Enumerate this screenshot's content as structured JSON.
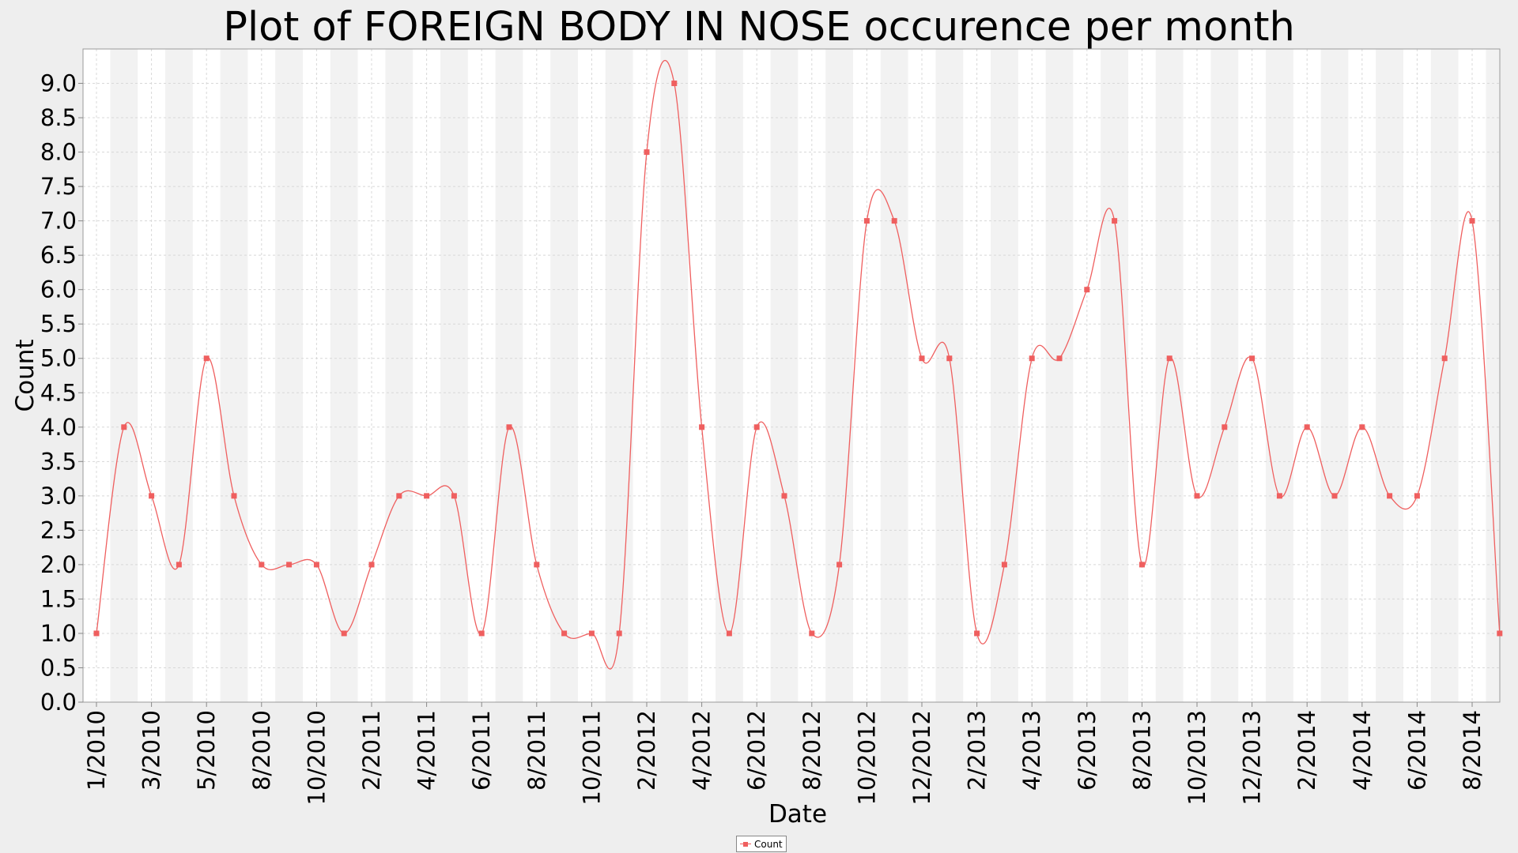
{
  "chart_data": {
    "type": "line",
    "title": "Plot of FOREIGN BODY IN NOSE occurence per month",
    "xlabel": "Date",
    "ylabel": "Count",
    "ylim": [
      0,
      9.5
    ],
    "yticks": [
      "0.0",
      "0.5",
      "1.0",
      "1.5",
      "2.0",
      "2.5",
      "3.0",
      "3.5",
      "4.0",
      "4.5",
      "5.0",
      "5.5",
      "6.0",
      "6.5",
      "7.0",
      "7.5",
      "8.0",
      "8.5",
      "9.0"
    ],
    "xtick_labels": [
      "1/2010",
      "3/2010",
      "5/2010",
      "8/2010",
      "10/2010",
      "2/2011",
      "4/2011",
      "6/2011",
      "8/2011",
      "10/2011",
      "2/2012",
      "4/2012",
      "6/2012",
      "8/2012",
      "10/2012",
      "12/2012",
      "2/2013",
      "4/2013",
      "6/2013",
      "8/2013",
      "10/2013",
      "12/2013",
      "2/2014",
      "4/2014",
      "6/2014",
      "8/2014"
    ],
    "grid": true,
    "legend_position": "bottom-center",
    "series": [
      {
        "name": "Count",
        "color": "#ef5f5f",
        "values": [
          1,
          4,
          3,
          2,
          5,
          3,
          2,
          2,
          2,
          1,
          2,
          3,
          3,
          3,
          1,
          4,
          2,
          1,
          1,
          1,
          8,
          9,
          4,
          1,
          4,
          3,
          1,
          2,
          7,
          7,
          5,
          5,
          1,
          2,
          5,
          5,
          6,
          7,
          2,
          5,
          3,
          4,
          5,
          3,
          4,
          3,
          4,
          3,
          3,
          5,
          7,
          1
        ]
      }
    ]
  },
  "legend": {
    "label": "Count"
  }
}
